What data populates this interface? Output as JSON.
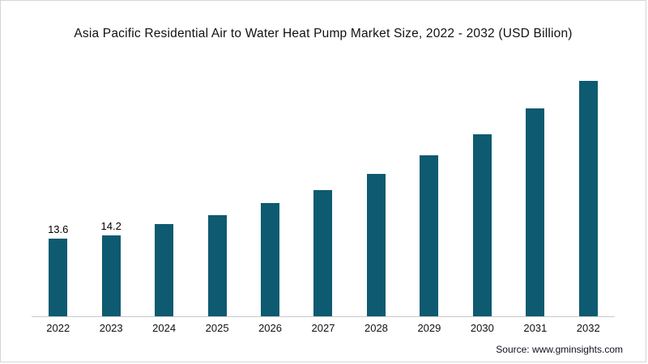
{
  "chart_data": {
    "type": "bar",
    "title": "Asia Pacific Residential Air to Water Heat Pump Market Size, 2022 - 2032 (USD Billion)",
    "categories": [
      "2022",
      "2023",
      "2024",
      "2025",
      "2026",
      "2027",
      "2028",
      "2029",
      "2030",
      "2031",
      "2032"
    ],
    "values": [
      13.6,
      14.2,
      16.2,
      17.8,
      19.9,
      22.2,
      25.0,
      28.2,
      32.0,
      36.5,
      41.4
    ],
    "data_labels": [
      "13.6",
      "14.2",
      "",
      "",
      "",
      "",
      "",
      "",
      "",
      "",
      ""
    ],
    "xlabel": "",
    "ylabel": "",
    "ylim": [
      0,
      44
    ],
    "grid": false,
    "legend": false
  },
  "source": {
    "label": "Source: www.gminsights.com"
  },
  "colors": {
    "bar": "#0e5a70",
    "axis": "#c9c9c9",
    "text": "#111111"
  }
}
